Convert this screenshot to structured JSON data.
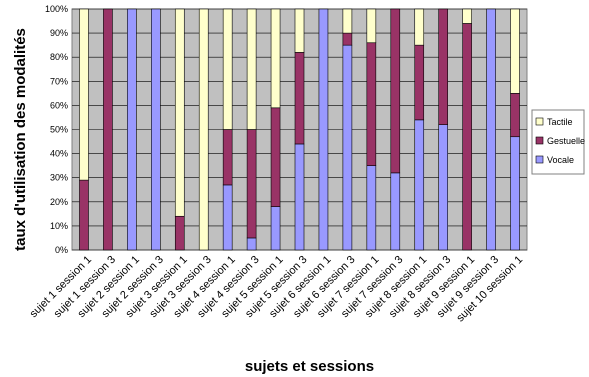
{
  "chart_data": {
    "type": "bar",
    "stacked": true,
    "percent": true,
    "xlabel": "sujets et sessions",
    "ylabel": "taux d'utilisation des modalités",
    "ylim": [
      0,
      100
    ],
    "y_ticks": [
      "0%",
      "10%",
      "20%",
      "30%",
      "40%",
      "50%",
      "60%",
      "70%",
      "80%",
      "90%",
      "100%"
    ],
    "categories": [
      "sujet 1  session 1",
      "sujet 1  session 3",
      "sujet 2 session 1",
      "sujet 2 session 3",
      "sujet 3 session 1",
      "sujet 3 session 3",
      "sujet 4 session 1",
      "sujet 4 session 3",
      "sujet 5 session 1",
      "sujet 5 session 3",
      "sujet 6 session 1",
      "sujet 6 session 3",
      "sujet 7 session 1",
      "sujet 7 session 3",
      "sujet 8 session 1",
      "sujet 8 session 3",
      "sujet 9 session 1",
      "sujet 9 session 3",
      "sujet 10 session 1"
    ],
    "visible_tick_labels": [
      "sujet 1  session 1",
      "sujet 1  session 3",
      "sujet 2 session 1",
      "sujet 2 session 3",
      "sujet 3 session 1",
      "sujet 3 session 3",
      "sujet 4 session 1",
      "sujet 4 session 3",
      "sujet 5 session 1",
      "sujet 5 session 3",
      "sujet 6 session 1",
      "sujet 6 session 3",
      "sujet 7 session 1",
      "sujet 7 session 3",
      "sujet 8 session 1",
      "sujet 8 session 3",
      "sujet 9 session 1",
      "sujet 9 session 3",
      "sujet 10 session 1"
    ],
    "series": [
      {
        "name": "Vocale",
        "color": "#9999ff",
        "values": [
          0,
          0,
          100,
          100,
          0,
          0,
          27,
          5,
          18,
          44,
          100,
          85,
          35,
          32,
          54,
          52,
          0,
          100,
          47
        ]
      },
      {
        "name": "Gestuelle",
        "color": "#993366",
        "values": [
          29,
          100,
          0,
          0,
          14,
          0,
          23,
          45,
          41,
          38,
          0,
          5,
          51,
          68,
          31,
          48,
          94,
          0,
          18
        ]
      },
      {
        "name": "Tactile",
        "color": "#ffffcc",
        "values": [
          71,
          0,
          0,
          0,
          86,
          100,
          50,
          50,
          41,
          18,
          0,
          10,
          14,
          0,
          15,
          0,
          6,
          0,
          35
        ]
      }
    ],
    "legend_order": [
      "Tactile",
      "Gestuelle",
      "Vocale"
    ],
    "legend_position": "right",
    "plot_background": "#c0c0c0",
    "grid": true
  }
}
